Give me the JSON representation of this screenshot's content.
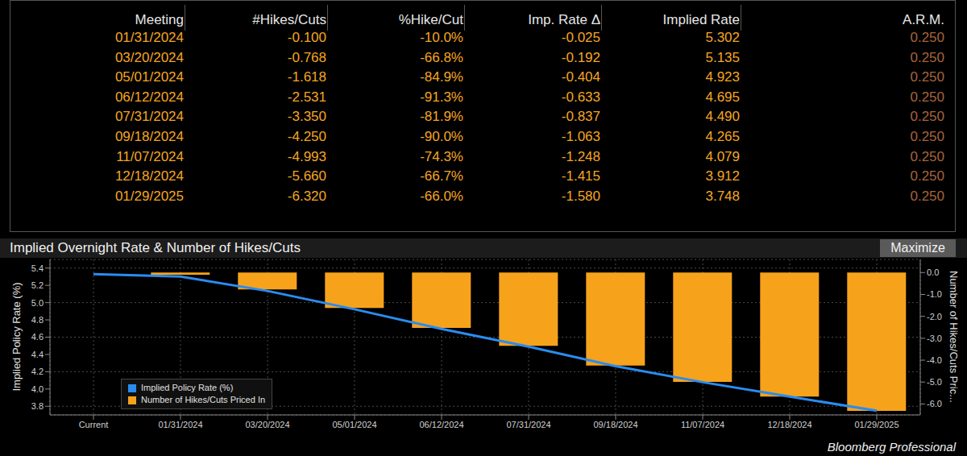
{
  "table": {
    "header": [
      "Meeting",
      "#Hikes/Cuts",
      "%Hike/Cut",
      "Imp. Rate Δ",
      "Implied Rate",
      "A.R.M."
    ],
    "rows": [
      [
        "01/31/2024",
        "-0.100",
        "-10.0%",
        "-0.025",
        "5.302",
        "0.250"
      ],
      [
        "03/20/2024",
        "-0.768",
        "-66.8%",
        "-0.192",
        "5.135",
        "0.250"
      ],
      [
        "05/01/2024",
        "-1.618",
        "-84.9%",
        "-0.404",
        "4.923",
        "0.250"
      ],
      [
        "06/12/2024",
        "-2.531",
        "-91.3%",
        "-0.633",
        "4.695",
        "0.250"
      ],
      [
        "07/31/2024",
        "-3.350",
        "-81.9%",
        "-0.837",
        "4.490",
        "0.250"
      ],
      [
        "09/18/2024",
        "-4.250",
        "-90.0%",
        "-1.063",
        "4.265",
        "0.250"
      ],
      [
        "11/07/2024",
        "-4.993",
        "-74.3%",
        "-1.248",
        "4.079",
        "0.250"
      ],
      [
        "12/18/2024",
        "-5.660",
        "-66.7%",
        "-1.415",
        "3.912",
        "0.250"
      ],
      [
        "01/29/2025",
        "-6.320",
        "-66.0%",
        "-1.580",
        "3.748",
        "0.250"
      ]
    ]
  },
  "button": "Maximize",
  "source": "Bloomberg Professional",
  "chart_data": {
    "type": "bar",
    "title": "Implied Overnight Rate & Number of Hikes/Cuts",
    "y_label": "Implied Policy Rate (%)",
    "y2_label": "Number of Hikes/Cuts Pric...",
    "categories": [
      "Current",
      "01/31/2024",
      "03/20/2024",
      "05/01/2024",
      "06/12/2024",
      "07/31/2024",
      "09/18/2024",
      "11/07/2024",
      "12/18/2024",
      "01/29/2025"
    ],
    "series": [
      {
        "name": "Implied Policy Rate (%)",
        "type": "line",
        "color": "#2a8cf0",
        "values": [
          5.33,
          5.302,
          5.135,
          4.923,
          4.695,
          4.49,
          4.265,
          4.079,
          3.912,
          3.748
        ]
      },
      {
        "name": "Number of Hikes/Cuts Priced In",
        "type": "bar",
        "axis": "y2",
        "color": "#f7a21b",
        "values": [
          0,
          -0.1,
          -0.768,
          -1.618,
          -2.531,
          -3.35,
          -4.25,
          -4.993,
          -5.66,
          -6.32
        ]
      }
    ],
    "ylim": [
      3.7,
      5.5
    ],
    "yticks": [
      3.8,
      {
        "value": 4,
        "label": "4.0"
      },
      4.2,
      4.4,
      4.6,
      4.8,
      {
        "value": 5,
        "label": "5.0"
      },
      5.2,
      5.4
    ],
    "y2lim": [
      -6.5,
      0.6
    ],
    "y2ticks": [
      {
        "value": 0,
        "label": "0.0"
      },
      {
        "value": -1,
        "label": "-1.0"
      },
      {
        "value": -2,
        "label": "-2.0"
      },
      {
        "value": -3,
        "label": "-3.0"
      },
      {
        "value": -4,
        "label": "-4.0"
      },
      {
        "value": -5,
        "label": "-5.0"
      },
      {
        "value": -6,
        "label": "-6.0"
      }
    ],
    "grid": true,
    "legend": "lower left"
  }
}
